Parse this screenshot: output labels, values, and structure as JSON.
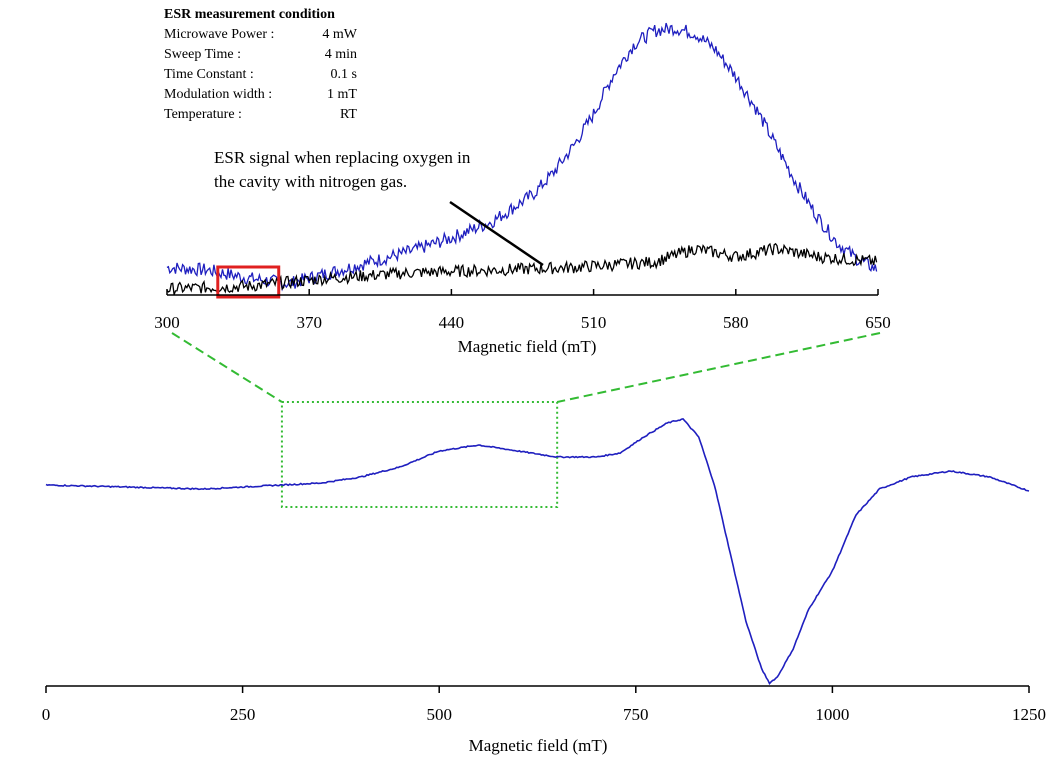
{
  "conditions": {
    "title": "ESR measurement condition",
    "rows": [
      {
        "label": "Microwave Power :",
        "value": "4 mW"
      },
      {
        "label": "Sweep Time :",
        "value": "4 min"
      },
      {
        "label": "Time Constant :",
        "value": "0.1 s"
      },
      {
        "label": "Modulation width :",
        "value": "1 mT"
      },
      {
        "label": "Temperature :",
        "value": "RT"
      }
    ]
  },
  "annotation": {
    "line1": "ESR signal when replacing oxygen in",
    "line2": "the cavity with nitrogen gas."
  },
  "colors": {
    "blue_trace": "#1f1fbf",
    "black_trace": "#000000",
    "zoom_guides": "#33bb33",
    "highlight_box": "#e02020"
  },
  "chart_data": [
    {
      "type": "line",
      "title": "",
      "xlabel": "Magnetic field (mT)",
      "ylabel": "",
      "xlim": [
        300,
        650
      ],
      "ylim": [
        0,
        1
      ],
      "xticks": [
        300,
        370,
        440,
        510,
        580,
        650
      ],
      "grid": false,
      "highlight_x_range": [
        325,
        355
      ],
      "series": [
        {
          "color": "#1f1fbf",
          "x": [
            300,
            320,
            340,
            360,
            380,
            400,
            420,
            440,
            460,
            480,
            490,
            500,
            510,
            520,
            530,
            540,
            550,
            560,
            570,
            580,
            590,
            600,
            610,
            620,
            630,
            640,
            650
          ],
          "y": [
            0.11,
            0.1,
            0.07,
            0.05,
            0.09,
            0.13,
            0.17,
            0.22,
            0.28,
            0.38,
            0.46,
            0.56,
            0.68,
            0.83,
            0.94,
            0.99,
            1.0,
            0.98,
            0.92,
            0.82,
            0.7,
            0.56,
            0.42,
            0.3,
            0.2,
            0.14,
            0.1
          ]
        },
        {
          "color": "#000000",
          "x": [
            300,
            340,
            380,
            420,
            460,
            500,
            540,
            560,
            580,
            600,
            620,
            650
          ],
          "y": [
            0.03,
            0.04,
            0.07,
            0.09,
            0.1,
            0.11,
            0.13,
            0.18,
            0.15,
            0.18,
            0.15,
            0.13
          ]
        }
      ]
    },
    {
      "type": "line",
      "title": "",
      "xlabel": "Magnetic field (mT)",
      "ylabel": "",
      "xlim": [
        0,
        1250
      ],
      "ylim": [
        -1,
        1
      ],
      "xticks": [
        0,
        250,
        500,
        750,
        1000,
        1250
      ],
      "grid": false,
      "zoom_x_range": [
        300,
        650
      ],
      "series": [
        {
          "color": "#1f1fbf",
          "x": [
            0,
            100,
            200,
            300,
            350,
            400,
            450,
            500,
            550,
            600,
            650,
            700,
            730,
            760,
            790,
            810,
            830,
            850,
            870,
            890,
            910,
            920,
            930,
            950,
            970,
            1000,
            1030,
            1060,
            1100,
            1150,
            1200,
            1250
          ],
          "y": [
            0.0,
            -0.01,
            -0.02,
            0.0,
            0.01,
            0.04,
            0.09,
            0.17,
            0.2,
            0.17,
            0.14,
            0.14,
            0.16,
            0.24,
            0.31,
            0.33,
            0.24,
            0.0,
            -0.34,
            -0.68,
            -0.92,
            -0.99,
            -0.96,
            -0.82,
            -0.62,
            -0.43,
            -0.15,
            -0.02,
            0.04,
            0.07,
            0.04,
            -0.03
          ]
        }
      ]
    }
  ]
}
